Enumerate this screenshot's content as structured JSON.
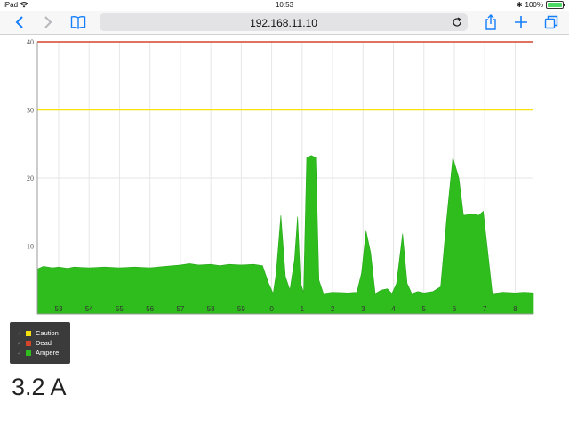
{
  "status_bar": {
    "device": "iPad",
    "time": "10:53",
    "battery_percent": "100%",
    "battery_level": 1.0
  },
  "browser": {
    "url": "192.168.11.10",
    "icons": {
      "back": "chevron-left-icon",
      "forward": "chevron-right-icon",
      "bookmarks": "book-icon",
      "reload": "reload-icon",
      "share": "share-icon",
      "new_tab": "plus-icon",
      "tabs": "tabs-icon"
    }
  },
  "legend": {
    "items": [
      {
        "label": "Caution",
        "color": "#f5e20f",
        "checked": true
      },
      {
        "label": "Dead",
        "color": "#d4462b",
        "checked": true
      },
      {
        "label": "Ampere",
        "color": "#2fbd1e",
        "checked": true
      }
    ]
  },
  "reading": "3.2 A",
  "chart_data": {
    "type": "area",
    "title": "",
    "xlabel": "",
    "ylabel": "",
    "ylim": [
      0,
      40
    ],
    "y_ticks": [
      10,
      20,
      30,
      40
    ],
    "xlim": [
      52.3,
      68.6
    ],
    "x_ticks": [
      {
        "label": "53",
        "x": 53
      },
      {
        "label": "54",
        "x": 54
      },
      {
        "label": "55",
        "x": 55
      },
      {
        "label": "56",
        "x": 56
      },
      {
        "label": "57",
        "x": 57
      },
      {
        "label": "58",
        "x": 58
      },
      {
        "label": "59",
        "x": 59
      },
      {
        "label": "0",
        "x": 60
      },
      {
        "label": "1",
        "x": 61
      },
      {
        "label": "2",
        "x": 62
      },
      {
        "label": "3",
        "x": 63
      },
      {
        "label": "4",
        "x": 64
      },
      {
        "label": "5",
        "x": 65
      },
      {
        "label": "6",
        "x": 66
      },
      {
        "label": "7",
        "x": 67
      },
      {
        "label": "8",
        "x": 68
      }
    ],
    "grid": true,
    "legend_position": "bottom-left",
    "thresholds": [
      {
        "name": "Dead",
        "value": 40,
        "color": "#d4462b"
      },
      {
        "name": "Caution",
        "value": 30,
        "color": "#f5e20f"
      }
    ],
    "series": [
      {
        "name": "Ampere",
        "color": "#2fbd1e",
        "points": [
          [
            52.3,
            6.6
          ],
          [
            52.5,
            7.0
          ],
          [
            52.8,
            6.8
          ],
          [
            53.0,
            6.9
          ],
          [
            53.3,
            6.7
          ],
          [
            53.5,
            6.9
          ],
          [
            54.0,
            6.8
          ],
          [
            54.5,
            6.9
          ],
          [
            55.0,
            6.8
          ],
          [
            55.5,
            6.9
          ],
          [
            56.0,
            6.8
          ],
          [
            56.5,
            7.0
          ],
          [
            57.0,
            7.2
          ],
          [
            57.3,
            7.4
          ],
          [
            57.6,
            7.2
          ],
          [
            58.0,
            7.3
          ],
          [
            58.3,
            7.1
          ],
          [
            58.6,
            7.3
          ],
          [
            59.0,
            7.2
          ],
          [
            59.4,
            7.3
          ],
          [
            59.7,
            7.1
          ],
          [
            59.9,
            4.5
          ],
          [
            60.05,
            3.0
          ],
          [
            60.15,
            6.0
          ],
          [
            60.3,
            14.5
          ],
          [
            60.45,
            5.5
          ],
          [
            60.6,
            3.5
          ],
          [
            60.75,
            8.0
          ],
          [
            60.85,
            14.3
          ],
          [
            60.95,
            4.5
          ],
          [
            61.05,
            3.2
          ],
          [
            61.15,
            23.0
          ],
          [
            61.3,
            23.3
          ],
          [
            61.45,
            23.0
          ],
          [
            61.55,
            5.0
          ],
          [
            61.7,
            3.0
          ],
          [
            62.0,
            3.2
          ],
          [
            62.5,
            3.1
          ],
          [
            62.8,
            3.2
          ],
          [
            62.95,
            6.0
          ],
          [
            63.1,
            12.2
          ],
          [
            63.25,
            9.0
          ],
          [
            63.4,
            3.0
          ],
          [
            63.6,
            3.5
          ],
          [
            63.8,
            3.7
          ],
          [
            63.95,
            3.0
          ],
          [
            64.1,
            4.5
          ],
          [
            64.3,
            11.8
          ],
          [
            64.45,
            4.5
          ],
          [
            64.6,
            3.0
          ],
          [
            64.8,
            3.3
          ],
          [
            65.0,
            3.1
          ],
          [
            65.3,
            3.3
          ],
          [
            65.55,
            4.0
          ],
          [
            65.75,
            14.0
          ],
          [
            65.95,
            23.0
          ],
          [
            66.15,
            20.0
          ],
          [
            66.3,
            14.5
          ],
          [
            66.6,
            14.7
          ],
          [
            66.8,
            14.5
          ],
          [
            66.95,
            15.1
          ],
          [
            67.1,
            9.0
          ],
          [
            67.25,
            3.0
          ],
          [
            67.6,
            3.2
          ],
          [
            68.0,
            3.1
          ],
          [
            68.3,
            3.2
          ],
          [
            68.6,
            3.1
          ]
        ]
      }
    ]
  }
}
